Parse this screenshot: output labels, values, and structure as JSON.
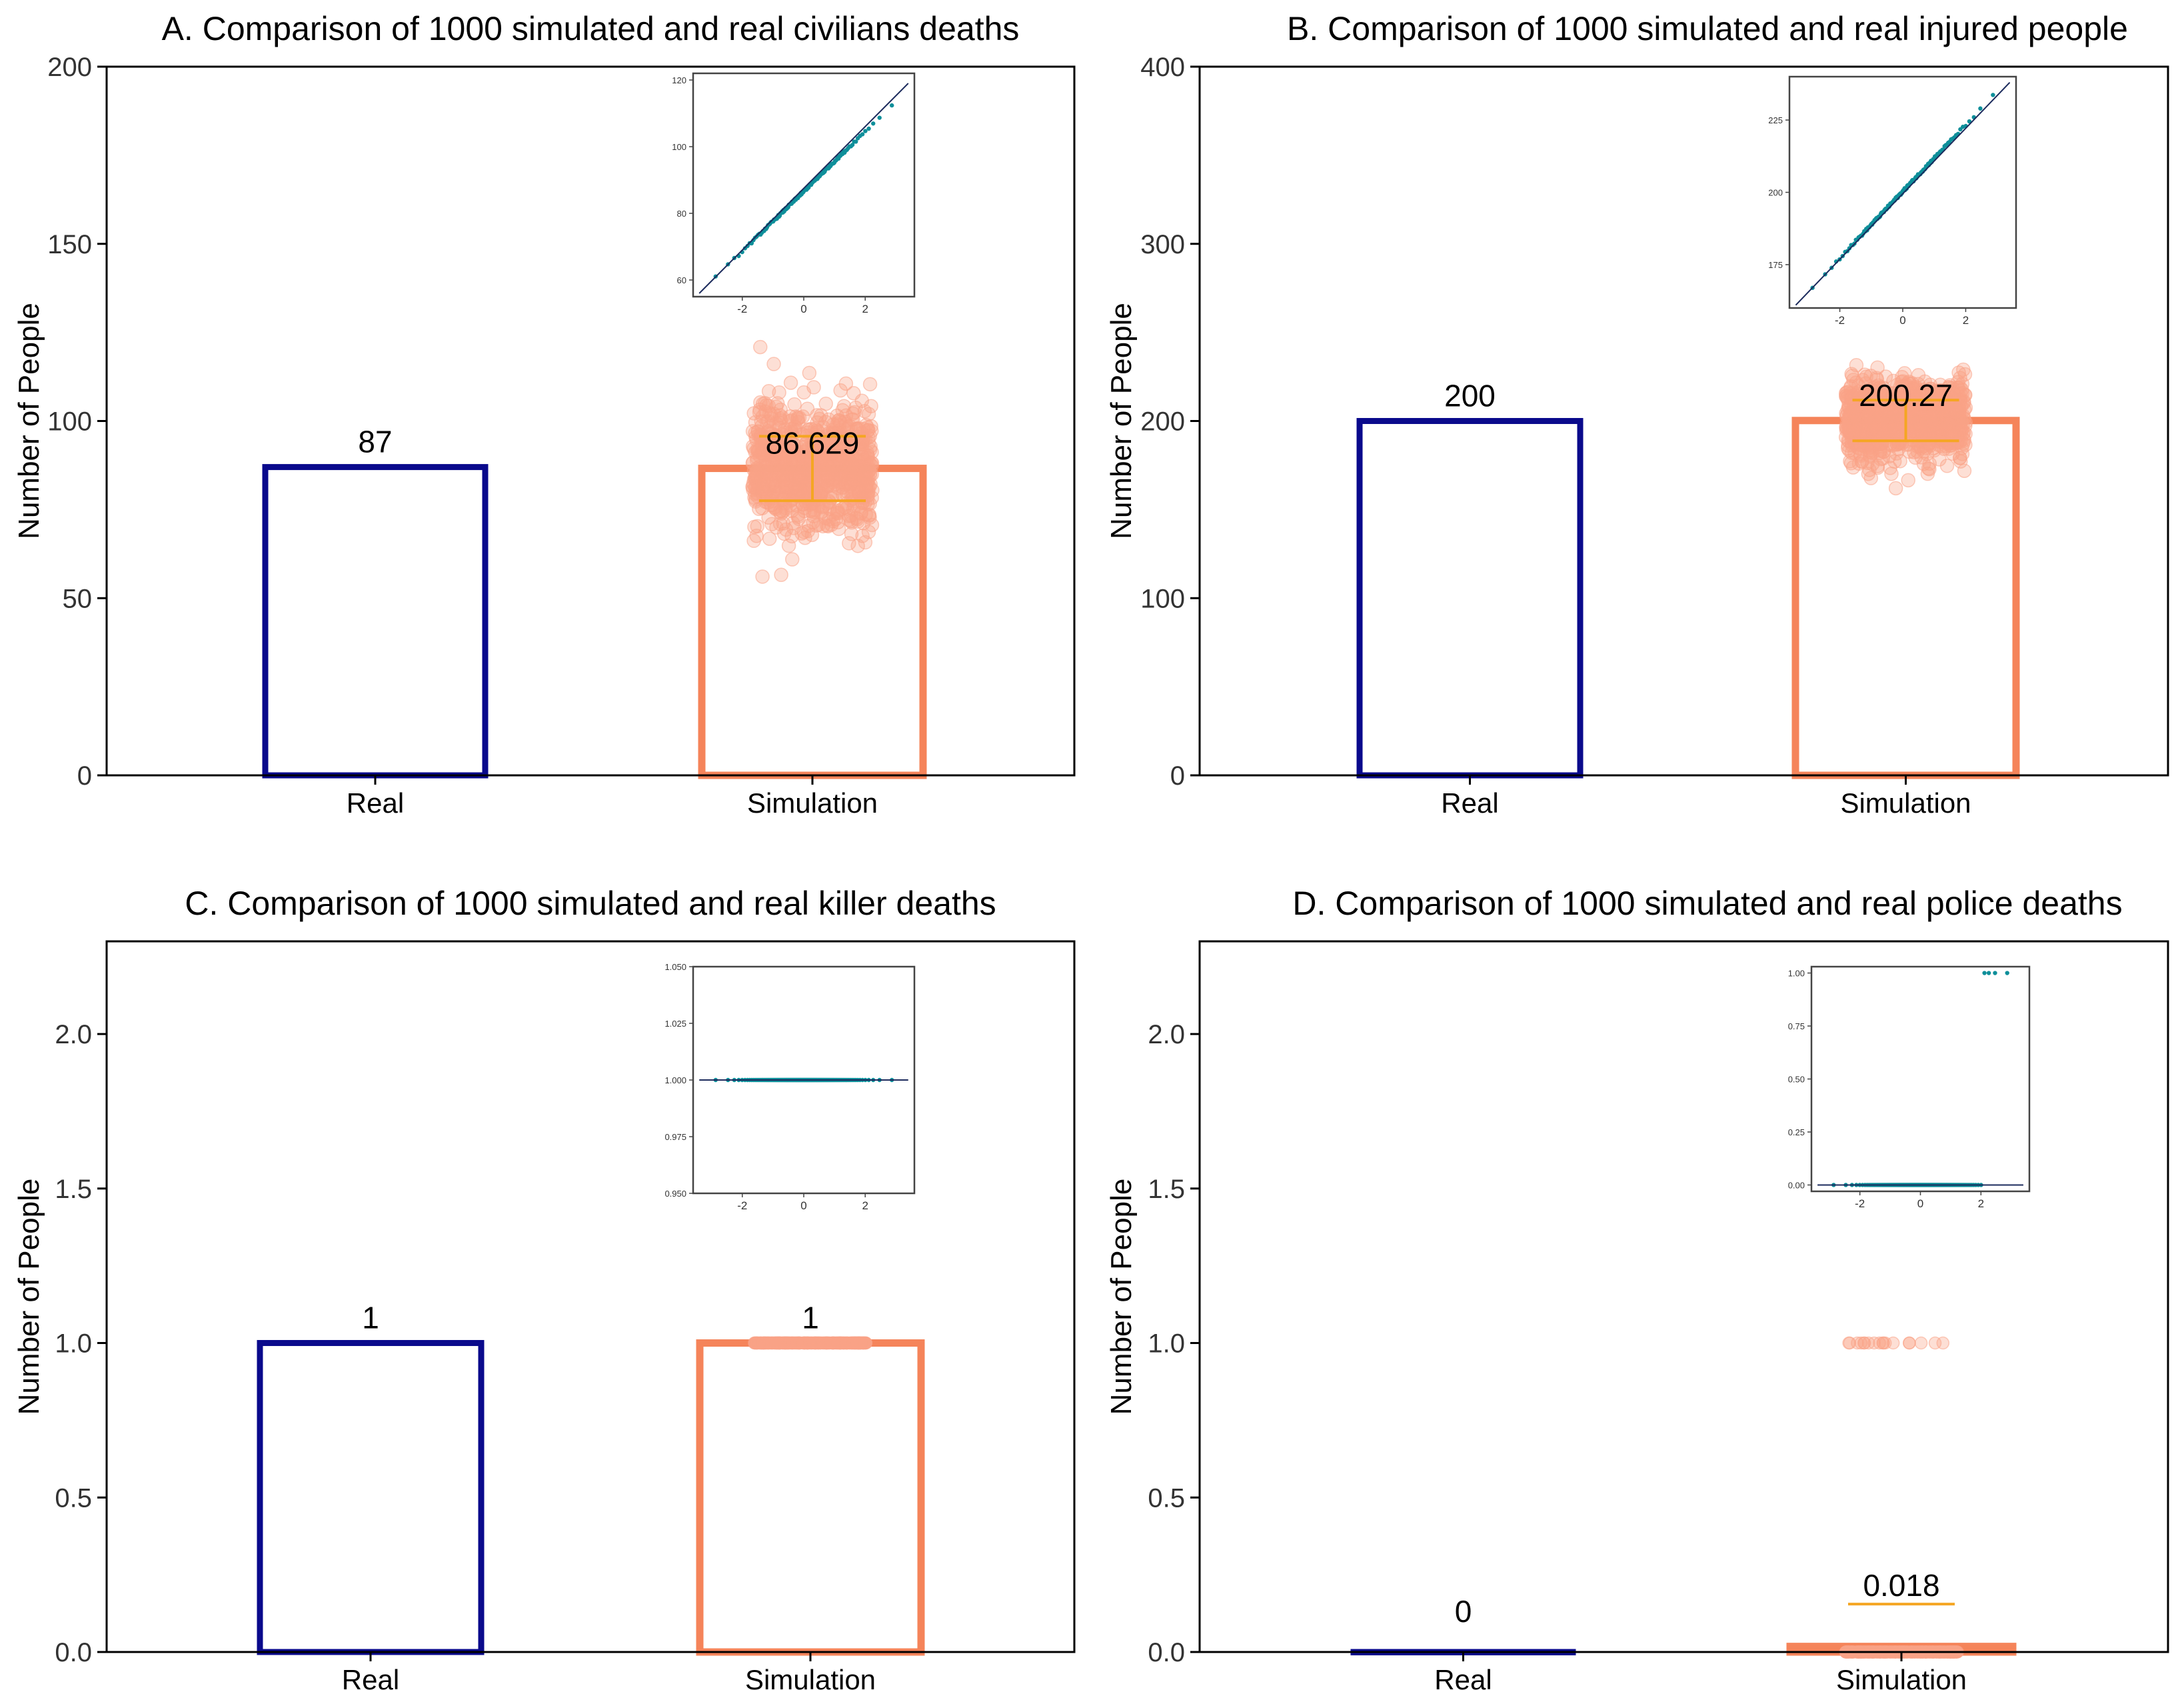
{
  "colors": {
    "real": "#0a0a8c",
    "simulation": "#f5845a",
    "jitter": "#f9a286",
    "errorbar": "#f5a623",
    "qq_points": "#0e8f9a",
    "qq_line": "#1b2a5c",
    "axis": "#000000"
  },
  "chart_data": [
    {
      "type": "bar",
      "title": "A. Comparison of 1000 simulated and real civilians deaths",
      "ylabel": "Number of People",
      "categories": [
        "Real",
        "Simulation"
      ],
      "values": [
        87,
        86.629
      ],
      "value_labels": [
        "87",
        "86.629"
      ],
      "ylim": [
        0,
        200
      ],
      "yticks": [
        0,
        50,
        100,
        150,
        200
      ],
      "ytick_labels": [
        "0",
        "50",
        "100",
        "150",
        "200"
      ],
      "errorbar": {
        "low": 77.5,
        "high": 95.7
      },
      "jitter": {
        "mean": 86.6,
        "sd": 9.0,
        "n": 900,
        "discrete": false
      },
      "inset": {
        "xlim": [
          -3.6,
          3.6
        ],
        "ylim": [
          55,
          122
        ],
        "xticks": [
          -2,
          0,
          2
        ],
        "xtick_labels": [
          "-2",
          "0",
          "2"
        ],
        "yticks": [
          60,
          80,
          100,
          120
        ],
        "ytick_labels": [
          "60",
          "80",
          "100",
          "120"
        ],
        "line": {
          "x": [
            -3.4,
            3.4
          ],
          "y": [
            56,
            119
          ]
        },
        "mode": "normal",
        "mean": 86.6,
        "sd": 9.0
      }
    },
    {
      "type": "bar",
      "title": "B. Comparison of 1000 simulated and real injured people",
      "ylabel": "Number of People",
      "categories": [
        "Real",
        "Simulation"
      ],
      "values": [
        200,
        200.27
      ],
      "value_labels": [
        "200",
        "200.27"
      ],
      "ylim": [
        0,
        400
      ],
      "yticks": [
        0,
        100,
        200,
        300,
        400
      ],
      "ytick_labels": [
        "0",
        "100",
        "200",
        "300",
        "400"
      ],
      "errorbar": {
        "low": 188.8,
        "high": 211.8
      },
      "jitter": {
        "mean": 200.3,
        "sd": 11.5,
        "n": 900,
        "discrete": false
      },
      "inset": {
        "xlim": [
          -3.6,
          3.6
        ],
        "ylim": [
          160,
          240
        ],
        "xticks": [
          -2,
          0,
          2
        ],
        "xtick_labels": [
          "-2",
          "0",
          "2"
        ],
        "yticks": [
          175,
          200,
          225
        ],
        "ytick_labels": [
          "175",
          "200",
          "225"
        ],
        "line": {
          "x": [
            -3.4,
            3.4
          ],
          "y": [
            161,
            238
          ]
        },
        "mode": "normal",
        "mean": 200.3,
        "sd": 11.5
      }
    },
    {
      "type": "bar",
      "title": "C. Comparison of 1000 simulated and real killer deaths",
      "ylabel": "Number of People",
      "categories": [
        "Real",
        "Simulation"
      ],
      "values": [
        1,
        1
      ],
      "value_labels": [
        "1",
        "1"
      ],
      "ylim": [
        0,
        2.3
      ],
      "yticks": [
        0,
        0.5,
        1.0,
        1.5,
        2.0
      ],
      "ytick_labels": [
        "0.0",
        "0.5",
        "1.0",
        "1.5",
        "2.0"
      ],
      "errorbar": null,
      "jitter": {
        "mean": 1,
        "sd": 0,
        "n": 260,
        "discrete": true,
        "level": 1
      },
      "inset": {
        "xlim": [
          -3.6,
          3.6
        ],
        "ylim": [
          0.95,
          1.05
        ],
        "xticks": [
          -2,
          0,
          2
        ],
        "xtick_labels": [
          "-2",
          "0",
          "2"
        ],
        "yticks": [
          0.95,
          0.975,
          1.0,
          1.025,
          1.05
        ],
        "ytick_labels": [
          "0.950",
          "0.975",
          "1.000",
          "1.025",
          "1.050"
        ],
        "line": {
          "x": [
            -3.4,
            3.4
          ],
          "y": [
            1.0,
            1.0
          ]
        },
        "mode": "constant",
        "value": 1.0
      }
    },
    {
      "type": "bar",
      "title": "D. Comparison of 1000 simulated and real police deaths",
      "ylabel": "Number of People",
      "categories": [
        "Real",
        "Simulation"
      ],
      "values": [
        0,
        0.018
      ],
      "value_labels": [
        "0",
        "0.018"
      ],
      "ylim": [
        0,
        2.3
      ],
      "yticks": [
        0,
        0.5,
        1.0,
        1.5,
        2.0
      ],
      "ytick_labels": [
        "0.0",
        "0.5",
        "1.0",
        "1.5",
        "2.0"
      ],
      "errorbar": {
        "low": 0.0,
        "high": 0.155
      },
      "jitter": {
        "mean": 0,
        "sd": 0,
        "n": 300,
        "discrete": true,
        "level": 0,
        "ones": 18
      },
      "inset": {
        "xlim": [
          -3.6,
          3.6
        ],
        "ylim": [
          -0.03,
          1.03
        ],
        "xticks": [
          -2,
          0,
          2
        ],
        "xtick_labels": [
          "-2",
          "0",
          "2"
        ],
        "yticks": [
          0,
          0.25,
          0.5,
          0.75,
          1.0
        ],
        "ytick_labels": [
          "0.00",
          "0.25",
          "0.50",
          "0.75",
          "1.00"
        ],
        "line": {
          "x": [
            -3.4,
            3.4
          ],
          "y": [
            0.0,
            0.0
          ]
        },
        "mode": "binary",
        "ones_from": 2.1
      }
    }
  ]
}
